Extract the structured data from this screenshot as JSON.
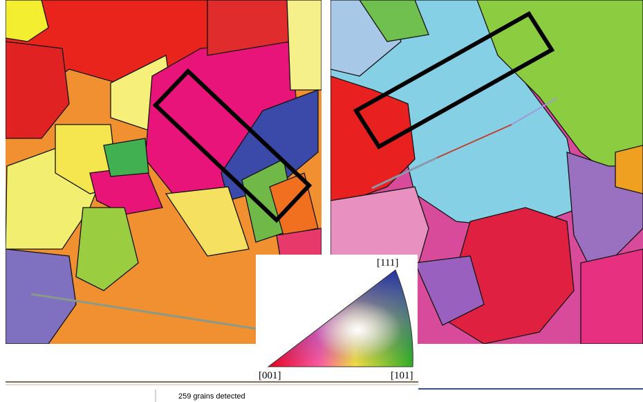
{
  "legend": {
    "top": "[111]",
    "left": "[001]",
    "right": "[101]"
  },
  "status_bar": {
    "text": "259 grains detected"
  }
}
